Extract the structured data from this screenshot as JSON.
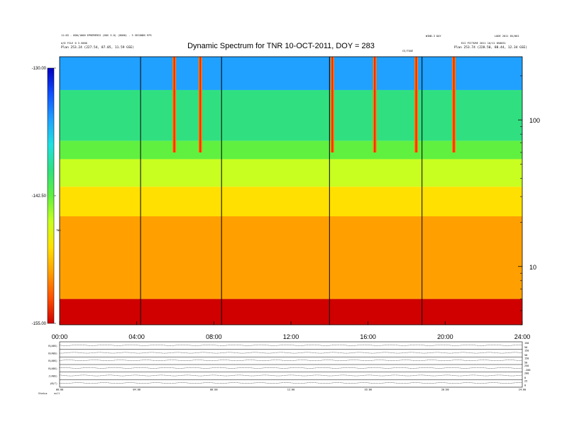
{
  "header": {
    "title": "Dynamic Spectrum for TNR 10-OCT-2011, DOY = 283",
    "left_line1": "11:03 - 800/1000 EPHEMERIS (DOS 3.0) (8060) - 3 SECONDS EPS",
    "left_line2": "A/D FILE 0 3.5000",
    "left_line3": "Plan 253.24 (227.54, 87.05, 11.59 GSE)",
    "right_line1": "WIND-3 DAY",
    "right_line2": "LODE 2011 05/001",
    "right_line3": "R12 PICTURE 2011 10/11 050031",
    "right_line4": "Plan 253.74 (228.50, 88.44, 12.34 GSE)",
    "marker_label": "CS/TOGE"
  },
  "chart_data": {
    "type": "heatmap",
    "title": "Dynamic Spectrum for TNR 10-OCT-2011, DOY = 283",
    "x_ticks": [
      "00:00",
      "04:00",
      "08:00",
      "12:00",
      "16:00",
      "20:00",
      "24:00"
    ],
    "x_range_hours": [
      0,
      24
    ],
    "y_scale": "log",
    "y_ticks": [
      "100",
      "10"
    ],
    "y_range": [
      4,
      270
    ],
    "colorbar": {
      "ticks": [
        "-130.00",
        "-142.50",
        "-155.00"
      ],
      "range": [
        -155,
        -130
      ],
      "label": "TNR",
      "colors": [
        "#d00000",
        "#ff5000",
        "#ffa000",
        "#ffe000",
        "#c8ff20",
        "#60f040",
        "#30e080",
        "#20e0e0",
        "#20a0ff",
        "#1050ff",
        "#0000c0"
      ]
    },
    "grid": false,
    "bands": [
      {
        "top": 270,
        "bottom": 160,
        "value": -134.5
      },
      {
        "top": 160,
        "bottom": 72,
        "value": -139.5
      },
      {
        "top": 72,
        "bottom": 54,
        "value": -142.5
      },
      {
        "top": 54,
        "bottom": 35,
        "value": -144.5
      },
      {
        "top": 35,
        "bottom": 22,
        "value": -146.5
      },
      {
        "top": 22,
        "bottom": 6,
        "value": -150
      },
      {
        "top": 6,
        "bottom": 4,
        "value": -154
      }
    ],
    "bursts_hours": [
      5.95,
      7.3,
      14.15,
      16.35,
      18.5,
      20.45
    ],
    "data_gaps_hours": [
      4.2,
      8.4,
      14.0,
      18.8
    ],
    "panels": [
      {
        "label": "B(ABS)",
        "right_ticks": [
          "150",
          "50"
        ]
      },
      {
        "label": "B(ABS)",
        "right_ticks": [
          "150",
          "50"
        ]
      },
      {
        "label": "B(ABS)",
        "right_ticks": [
          "150",
          "50"
        ]
      },
      {
        "label": "B(ABS)",
        "right_ticks": [
          "250",
          "-200"
        ]
      },
      {
        "label": "J(ABS)",
        "right_ticks": [
          "200",
          "0"
        ]
      },
      {
        "label": "jB(T)",
        "right_ticks": [
          "25",
          "0"
        ]
      }
    ],
    "panel_x_ticks": [
      "00:00",
      "04:00",
      "08:00",
      "12:00",
      "16:00",
      "20:00",
      "24:00"
    ],
    "footer_label": "Status",
    "footer_value": "null"
  }
}
